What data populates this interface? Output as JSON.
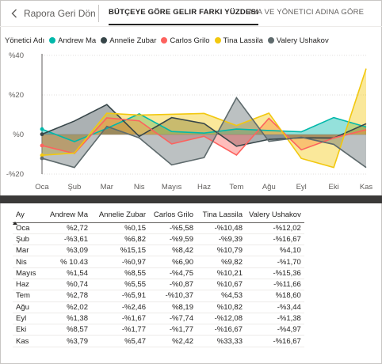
{
  "header": {
    "back_label": "Rapora Geri Dön",
    "tabs": [
      {
        "label": "BÜTÇEYE GÖRE GELIR FARKI YÜZDESI",
        "active": true
      },
      {
        "label": "AYA VE YÖNETICI ADINA GÖRE",
        "active": false
      }
    ]
  },
  "legend": {
    "title": "Yönetici Adı",
    "items": [
      {
        "label": "Andrew Ma",
        "color": "#01B8AA"
      },
      {
        "label": "Annelie Zubar",
        "color": "#374649"
      },
      {
        "label": "Carlos Grilo",
        "color": "#FD625E"
      },
      {
        "label": "Tina Lassila",
        "color": "#F2C80F"
      },
      {
        "label": "Valery Ushakov",
        "color": "#5F6B6D"
      }
    ]
  },
  "chart_data": {
    "type": "area",
    "title": "",
    "xlabel": "",
    "ylabel": "",
    "ylim": [
      -20,
      40
    ],
    "yticks": [
      -20,
      0,
      20,
      40
    ],
    "ytick_labels": [
      "-%20",
      "%0",
      "%20",
      "%40"
    ],
    "categories": [
      "Oca",
      "Şub",
      "Mar",
      "Nis",
      "Mayıs",
      "Haz",
      "Tem",
      "Ağu",
      "Eyl",
      "Eki",
      "Kas"
    ],
    "series": [
      {
        "name": "Andrew Ma",
        "color": "#01B8AA",
        "values": [
          2.72,
          -3.61,
          3.09,
          10.43,
          1.54,
          0.74,
          2.78,
          2.02,
          1.38,
          8.57,
          3.79
        ]
      },
      {
        "name": "Annelie Zubar",
        "color": "#374649",
        "values": [
          0.15,
          6.82,
          15.15,
          -0.97,
          8.55,
          5.55,
          -5.91,
          -2.46,
          -1.67,
          -1.77,
          5.47
        ]
      },
      {
        "name": "Carlos Grilo",
        "color": "#FD625E",
        "values": [
          -5.58,
          -9.59,
          8.42,
          6.9,
          -4.75,
          -0.87,
          -10.37,
          8.19,
          -7.74,
          -1.77,
          2.42
        ]
      },
      {
        "name": "Tina Lassila",
        "color": "#F2C80F",
        "values": [
          -10.48,
          -9.39,
          10.79,
          9.82,
          10.21,
          10.67,
          4.53,
          10.82,
          -12.08,
          -16.67,
          33.33
        ]
      },
      {
        "name": "Valery Ushakov",
        "color": "#5F6B6D",
        "values": [
          -12.02,
          -16.67,
          4.1,
          -1.7,
          -15.36,
          -11.66,
          18.6,
          -3.44,
          -1.38,
          -4.97,
          -16.67
        ]
      }
    ]
  },
  "table": {
    "headers": [
      "Ay",
      "Andrew Ma",
      "Annelie Zubar",
      "Carlos Grilo",
      "Tina Lassila",
      "Valery Ushakov"
    ],
    "rows": [
      [
        "Oca",
        "%2,72",
        "%0,15",
        "-%5,58",
        "-%10,48",
        "-%12,02"
      ],
      [
        "Şub",
        "-%3,61",
        "%6,82",
        "-%9,59",
        "-%9,39",
        "-%16,67"
      ],
      [
        "Mar",
        "%3,09",
        "%15,15",
        "%8,42",
        "%10,79",
        "%4,10"
      ],
      [
        "Nis",
        "% 10.43",
        "-%0,97",
        "%6,90",
        "%9,82",
        "-%1,70"
      ],
      [
        "Mayıs",
        "%1,54",
        "%8,55",
        "-%4,75",
        "%10,21",
        "-%15,36"
      ],
      [
        "Haz",
        "%0,74",
        "%5,55",
        "-%0,87",
        "%10,67",
        "-%11,66"
      ],
      [
        "Tem",
        "%2,78",
        "-%5,91",
        "-%10,37",
        "%4,53",
        "%18,60"
      ],
      [
        "Ağu",
        "%2,02",
        "-%2,46",
        "%8,19",
        "%10,82",
        "-%3,44"
      ],
      [
        "Eyl",
        "%1,38",
        "-%1,67",
        "-%7,74",
        "-%12,08",
        "-%1,38"
      ],
      [
        "Eki",
        "%8,57",
        "-%1,77",
        "-%1,77",
        "-%16,67",
        "-%4,97"
      ],
      [
        "Kas",
        "%3,79",
        "%5,47",
        "%2,42",
        "%33,33",
        "-%16,67"
      ]
    ]
  }
}
